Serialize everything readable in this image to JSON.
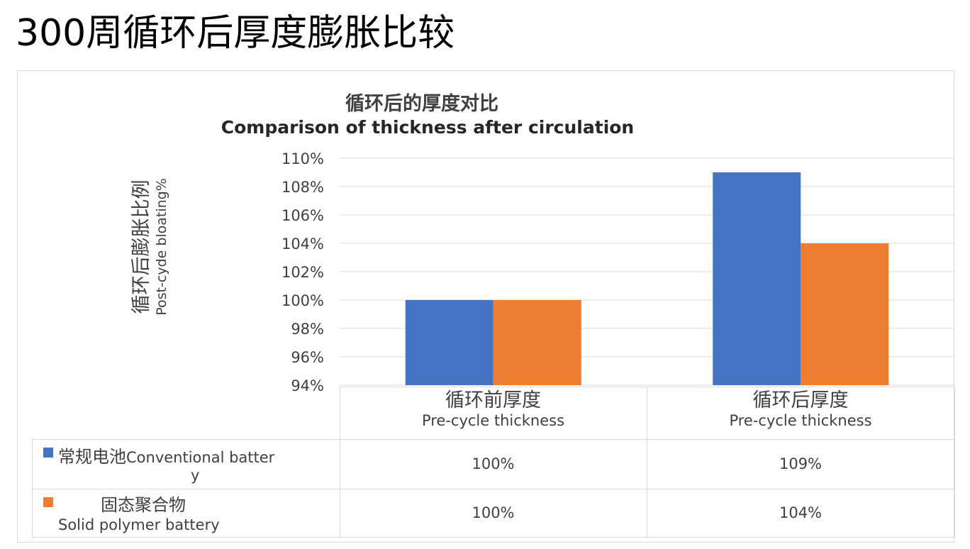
{
  "slide_title": "300周循环后厚度膨胀比较",
  "chart_data": {
    "type": "bar",
    "title": "循环后的厚度对比",
    "subtitle": "Comparison of thickness after circulation",
    "ylabel_cn": "循环后膨胀比例",
    "ylabel_en": "Post-cyde bloating%",
    "ylim": [
      94,
      110
    ],
    "yticks": [
      "110%",
      "108%",
      "106%",
      "104%",
      "102%",
      "100%",
      "98%",
      "96%",
      "94%"
    ],
    "categories": [
      {
        "cn": "循环前厚度",
        "en": "Pre-cycle thickness"
      },
      {
        "cn": "循环后厚度",
        "en": "Pre-cycle thickness"
      }
    ],
    "series": [
      {
        "name_cn": "常规电池",
        "name_en_1": "Conventional batter",
        "name_en_2": "y",
        "color": "#4472C4",
        "values": [
          100,
          109
        ],
        "labels": [
          "100%",
          "109%"
        ]
      },
      {
        "name_cn": "固态聚合物",
        "name_en": "Solid polymer battery",
        "color": "#ED7D31",
        "values": [
          100,
          104
        ],
        "labels": [
          "100%",
          "104%"
        ]
      }
    ],
    "grid": true,
    "legend": "data-table"
  }
}
